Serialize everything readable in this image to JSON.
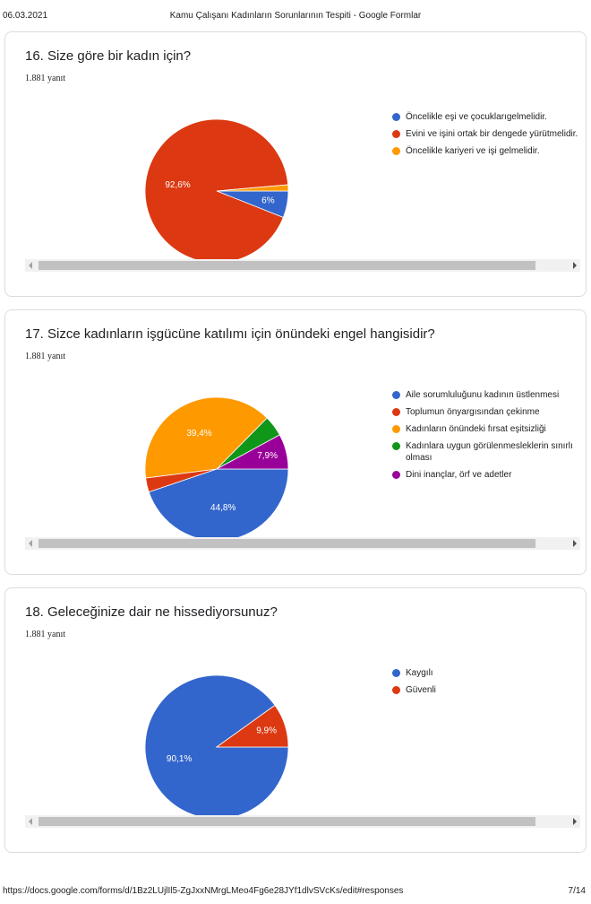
{
  "print_header": {
    "date": "06.03.2021",
    "title": "Kamu Çalışanı Kadınların Sorunlarının Tespiti - Google Formlar"
  },
  "print_footer": {
    "url": "https://docs.google.com/forms/d/1Bz2LUjlIl5-ZgJxxNMrgLMeo4Fg6e28JYf1dlvSVcKs/edit#responses",
    "page": "7/14"
  },
  "colors": {
    "blue": "#3366cc",
    "red": "#dc3912",
    "orange": "#ff9900",
    "green": "#109618",
    "purple": "#990099"
  },
  "chart_data": [
    {
      "type": "pie",
      "title": "16. Size göre bir kadın için?",
      "response_count": "1.881 yanıt",
      "slices": [
        {
          "label": "Öncelikle eşi ve çocuklarıgelmelidir.",
          "value": 6.0,
          "display": "6%",
          "color": "#3366cc"
        },
        {
          "label": "Evini ve işini ortak bir dengede yürütmelidir.",
          "value": 92.6,
          "display": "92,6%",
          "color": "#dc3912"
        },
        {
          "label": "Öncelikle kariyeri ve işi gelmelidir.",
          "value": 1.4,
          "display": "",
          "color": "#ff9900"
        }
      ],
      "legend_position": "right"
    },
    {
      "type": "pie",
      "title": "17. Sizce kadınların işgücüne katılımı için önündeki engel hangisidir?",
      "response_count": "1.881 yanıt",
      "slices": [
        {
          "label": "Aile sorumluluğunu kadının üstlenmesi",
          "value": 44.8,
          "display": "44,8%",
          "color": "#3366cc"
        },
        {
          "label": "Toplumun önyargısından çekinme",
          "value": 3.2,
          "display": "",
          "color": "#dc3912"
        },
        {
          "label": "Kadınların önündeki fırsat eşitsizliği",
          "value": 39.4,
          "display": "39,4%",
          "color": "#ff9900"
        },
        {
          "label": "Kadınlara uygun görülenmesleklerin sınırlı olması",
          "value": 4.7,
          "display": "",
          "color": "#109618"
        },
        {
          "label": "Dini inançlar, örf ve adetler",
          "value": 7.9,
          "display": "7,9%",
          "color": "#990099"
        }
      ],
      "legend_position": "right"
    },
    {
      "type": "pie",
      "title": "18. Geleceğinize dair ne hissediyorsunuz?",
      "response_count": "1.881 yanıt",
      "slices": [
        {
          "label": "Kaygılı",
          "value": 90.1,
          "display": "90,1%",
          "color": "#3366cc"
        },
        {
          "label": "Güvenli",
          "value": 9.9,
          "display": "9,9%",
          "color": "#dc3912"
        }
      ],
      "legend_position": "right"
    }
  ]
}
